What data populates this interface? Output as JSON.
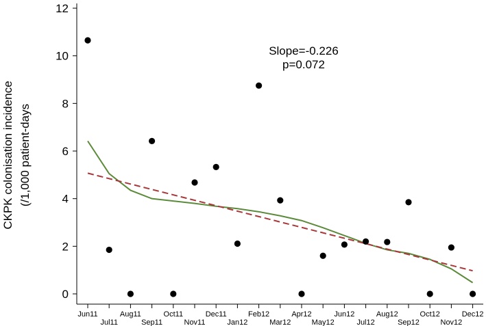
{
  "chart_data": {
    "type": "scatter",
    "title": "",
    "xlabel": "",
    "ylabel_lines": [
      "CKPK colonisation incidence",
      "(/1,000 patient-days"
    ],
    "categories": [
      "Jun11",
      "Jul11",
      "Aug11",
      "Sep11",
      "Oct11",
      "Nov11",
      "Dec11",
      "Jan12",
      "Feb12",
      "Mar12",
      "Apr12",
      "May12",
      "Jun12",
      "Jul12",
      "Aug12",
      "Sep12",
      "Oct12",
      "Nov12",
      "Dec12"
    ],
    "yticks": [
      0,
      2,
      4,
      6,
      8,
      10,
      12
    ],
    "ylim": [
      0,
      12
    ],
    "points": [
      10.65,
      1.85,
      0,
      6.42,
      0,
      4.68,
      5.33,
      2.11,
      8.75,
      3.93,
      0,
      1.6,
      2.07,
      2.2,
      2.18,
      3.85,
      0,
      1.95,
      0
    ],
    "smooth": [
      6.42,
      5.05,
      4.35,
      4.0,
      3.9,
      3.8,
      3.68,
      3.58,
      3.45,
      3.28,
      3.08,
      2.78,
      2.45,
      2.12,
      1.85,
      1.7,
      1.45,
      1.05,
      0.47
    ],
    "trend": {
      "start": 5.07,
      "end": 0.97
    },
    "annotation": {
      "line1": "Slope=-0.226",
      "line2": "p=0.072"
    },
    "colors": {
      "points": "#000000",
      "smooth": "#5b8a3a",
      "trend": "#a8383a"
    }
  }
}
